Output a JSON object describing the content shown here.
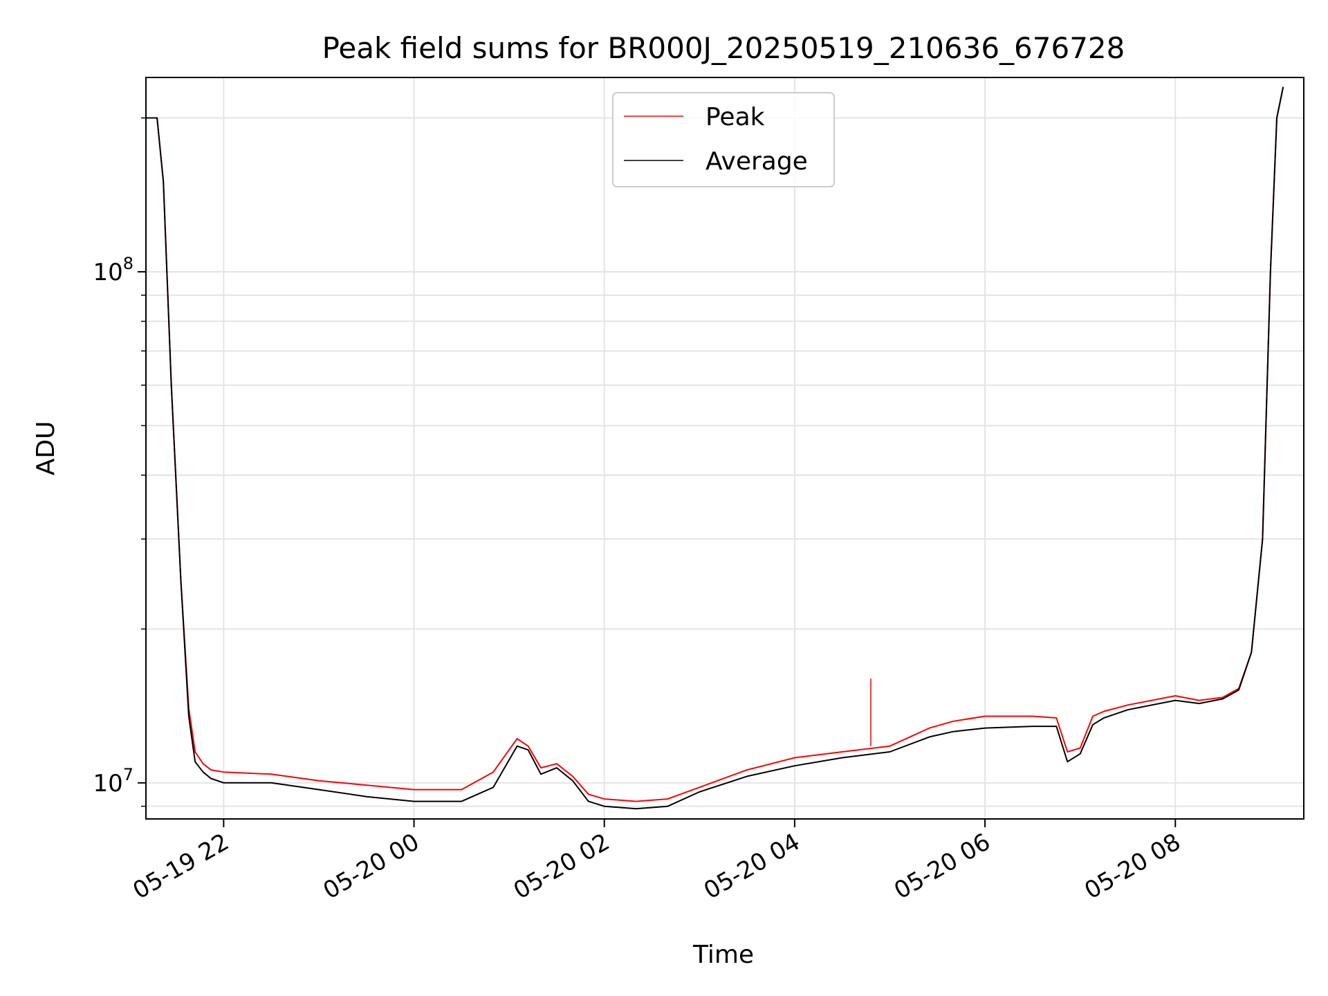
{
  "chart_data": {
    "type": "line",
    "title": "Peak field sums for BR000J_20250519_210636_676728",
    "xlabel": "Time",
    "ylabel": "ADU",
    "yscale": "log",
    "xlim": [
      "2025-05-19 21:11",
      "2025-05-20 09:21"
    ],
    "ylim": [
      8500000,
      240000000
    ],
    "grid": true,
    "legend_position": "upper center",
    "x_ticks": [
      {
        "value": "2025-05-19 22:00",
        "label": "05-19 22"
      },
      {
        "value": "2025-05-20 00:00",
        "label": "05-20 00"
      },
      {
        "value": "2025-05-20 02:00",
        "label": "05-20 02"
      },
      {
        "value": "2025-05-20 04:00",
        "label": "05-20 04"
      },
      {
        "value": "2025-05-20 06:00",
        "label": "05-20 06"
      },
      {
        "value": "2025-05-20 08:00",
        "label": "05-20 08"
      }
    ],
    "y_ticks": [
      {
        "value": 10000000,
        "base": "10",
        "exp": "7"
      },
      {
        "value": 100000000,
        "base": "10",
        "exp": "8"
      }
    ],
    "x": [
      "2025-05-19 21:11",
      "2025-05-19 21:18",
      "2025-05-19 21:22",
      "2025-05-19 21:27",
      "2025-05-19 21:33",
      "2025-05-19 21:38",
      "2025-05-19 21:42",
      "2025-05-19 21:47",
      "2025-05-19 21:52",
      "2025-05-19 22:00",
      "2025-05-19 22:30",
      "2025-05-19 23:00",
      "2025-05-19 23:30",
      "2025-05-20 00:00",
      "2025-05-20 00:30",
      "2025-05-20 00:50",
      "2025-05-20 01:05",
      "2025-05-20 01:12",
      "2025-05-20 01:20",
      "2025-05-20 01:30",
      "2025-05-20 01:40",
      "2025-05-20 01:50",
      "2025-05-20 02:00",
      "2025-05-20 02:20",
      "2025-05-20 02:40",
      "2025-05-20 03:00",
      "2025-05-20 03:30",
      "2025-05-20 04:00",
      "2025-05-20 04:30",
      "2025-05-20 05:00",
      "2025-05-20 05:25",
      "2025-05-20 05:40",
      "2025-05-20 06:00",
      "2025-05-20 06:30",
      "2025-05-20 06:45",
      "2025-05-20 06:52",
      "2025-05-20 07:00",
      "2025-05-20 07:08",
      "2025-05-20 07:15",
      "2025-05-20 07:30",
      "2025-05-20 08:00",
      "2025-05-20 08:15",
      "2025-05-20 08:30",
      "2025-05-20 08:40",
      "2025-05-20 08:48",
      "2025-05-20 08:55",
      "2025-05-20 09:00",
      "2025-05-20 09:04",
      "2025-05-20 09:08"
    ],
    "series": [
      {
        "name": "Peak",
        "color": "#ff0000",
        "values": [
          200000000,
          200000000,
          150000000,
          60000000,
          25000000,
          14000000,
          11500000,
          10900000,
          10600000,
          10500000,
          10400000,
          10100000,
          9900000,
          9700000,
          9700000,
          10500000,
          12200000,
          11800000,
          10700000,
          10900000,
          10300000,
          9500000,
          9300000,
          9200000,
          9300000,
          9800000,
          10600000,
          11200000,
          11500000,
          11800000,
          12800000,
          13200000,
          13500000,
          13500000,
          13400000,
          11500000,
          11700000,
          13500000,
          13800000,
          14200000,
          14800000,
          14500000,
          14700000,
          15300000,
          18000000,
          30000000,
          100000000,
          200000000,
          230000000
        ]
      },
      {
        "name": "Average",
        "color": "#000000",
        "values": [
          200000000,
          200000000,
          150000000,
          60000000,
          25000000,
          13500000,
          11000000,
          10500000,
          10200000,
          10000000,
          10000000,
          9700000,
          9400000,
          9200000,
          9200000,
          9800000,
          11800000,
          11600000,
          10400000,
          10700000,
          10100000,
          9200000,
          9000000,
          8900000,
          9000000,
          9600000,
          10300000,
          10800000,
          11200000,
          11500000,
          12300000,
          12600000,
          12800000,
          12900000,
          12900000,
          11000000,
          11400000,
          13000000,
          13400000,
          13900000,
          14500000,
          14300000,
          14600000,
          15200000,
          18000000,
          30000000,
          100000000,
          200000000,
          230000000
        ]
      }
    ],
    "annotations": [
      {
        "series": "Peak",
        "x": "2025-05-20 04:48",
        "y": 16000000,
        "note": "spike"
      }
    ]
  }
}
